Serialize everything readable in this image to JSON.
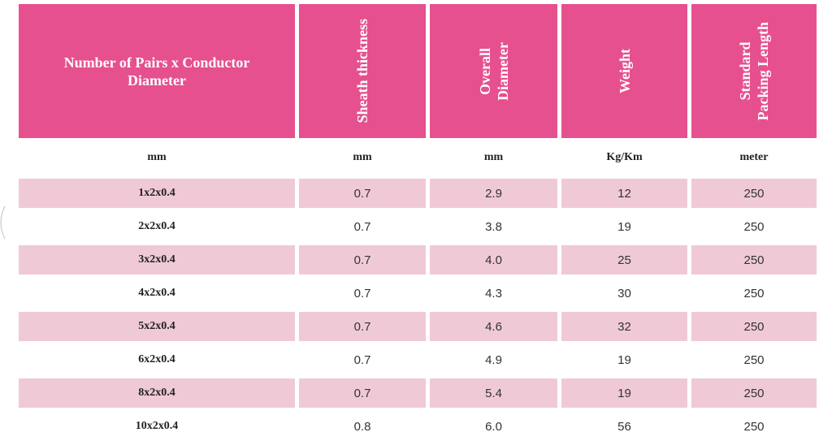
{
  "headers": [
    {
      "lines": [
        "Number of Pairs x Conductor",
        "Diameter"
      ]
    },
    {
      "lines": [
        "Sheath thickness"
      ]
    },
    {
      "lines": [
        "Overall",
        "Diameter"
      ]
    },
    {
      "lines": [
        "Weight"
      ]
    },
    {
      "lines": [
        "Standard",
        "Packing Length"
      ]
    }
  ],
  "units": [
    "mm",
    "mm",
    "mm",
    "Kg/Km",
    "meter"
  ],
  "rows": [
    [
      "1x2x0.4",
      "0.7",
      "2.9",
      "12",
      "250"
    ],
    [
      "2x2x0.4",
      "0.7",
      "3.8",
      "19",
      "250"
    ],
    [
      "3x2x0.4",
      "0.7",
      "4.0",
      "25",
      "250"
    ],
    [
      "4x2x0.4",
      "0.7",
      "4.3",
      "30",
      "250"
    ],
    [
      "5x2x0.4",
      "0.7",
      "4.6",
      "32",
      "250"
    ],
    [
      "6x2x0.4",
      "0.7",
      "4.9",
      "19",
      "250"
    ],
    [
      "8x2x0.4",
      "0.7",
      "5.4",
      "19",
      "250"
    ],
    [
      "10x2x0.4",
      "0.8",
      "6.0",
      "56",
      "250"
    ]
  ],
  "colors": {
    "header_bg": "#e6508f",
    "shaded_row_bg": "#f0c9d7"
  }
}
